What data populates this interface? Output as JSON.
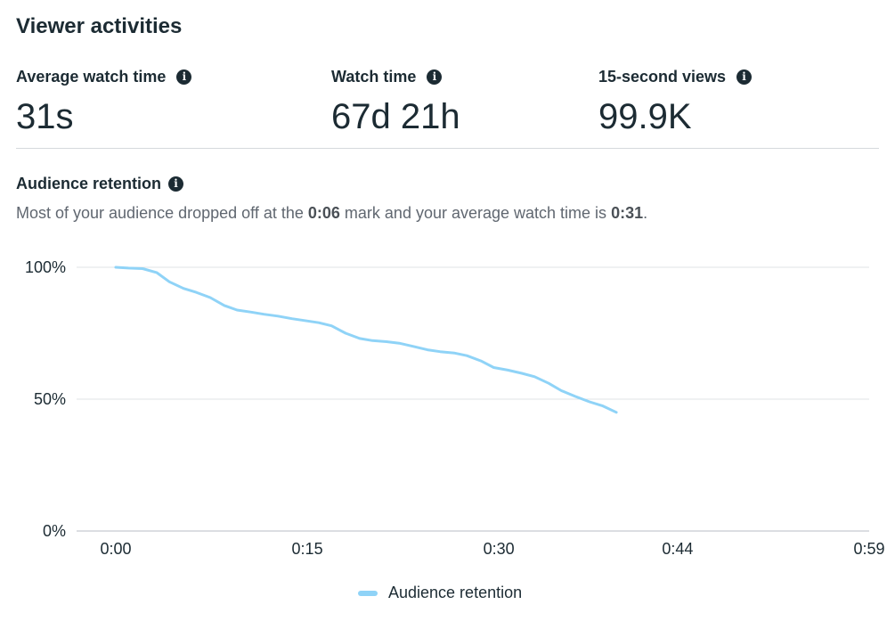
{
  "section": {
    "title": "Viewer activities"
  },
  "metrics": [
    {
      "label": "Average watch time",
      "value": "31s",
      "icon": "info-icon"
    },
    {
      "label": "Watch time",
      "value": "67d 21h",
      "icon": "info-icon"
    },
    {
      "label": "15-second views",
      "value": "99.9K",
      "icon": "info-icon"
    }
  ],
  "retention": {
    "title": "Audience retention",
    "desc_prefix": "Most of your audience dropped off at the ",
    "drop_mark": "0:06",
    "desc_middle": " mark and your average watch time is ",
    "avg_mark": "0:31",
    "desc_suffix": "."
  },
  "legend": {
    "label": "Audience retention",
    "color": "#8fd3f7"
  },
  "chart_data": {
    "type": "line",
    "title": "",
    "xlabel": "",
    "ylabel": "",
    "x_ticks": [
      {
        "t": 0,
        "label": "0:00"
      },
      {
        "t": 15,
        "label": "0:15"
      },
      {
        "t": 30,
        "label": "0:30"
      },
      {
        "t": 44,
        "label": "0:44"
      },
      {
        "t": 59,
        "label": "0:59"
      }
    ],
    "y_ticks": [
      {
        "v": 0,
        "label": "0%"
      },
      {
        "v": 50,
        "label": "50%"
      },
      {
        "v": 100,
        "label": "100%"
      }
    ],
    "xlim": [
      0,
      59
    ],
    "ylim": [
      0,
      100
    ],
    "grid": true,
    "series": [
      {
        "name": "Audience retention",
        "color": "#8fd3f7",
        "points": [
          [
            0,
            100
          ],
          [
            1,
            99.7
          ],
          [
            2.1,
            99.5
          ],
          [
            3.2,
            98
          ],
          [
            4.2,
            94.5
          ],
          [
            5.3,
            92
          ],
          [
            6.3,
            90.5
          ],
          [
            7.4,
            88.5
          ],
          [
            8.5,
            85.5
          ],
          [
            9.5,
            83.8
          ],
          [
            10.6,
            83
          ],
          [
            11.6,
            82.2
          ],
          [
            12.7,
            81.5
          ],
          [
            13.8,
            80.5
          ],
          [
            14.8,
            79.8
          ],
          [
            15.9,
            79
          ],
          [
            16.9,
            77.8
          ],
          [
            18,
            75
          ],
          [
            19.1,
            73
          ],
          [
            20.1,
            72.2
          ],
          [
            21.2,
            71.8
          ],
          [
            22.2,
            71.2
          ],
          [
            23.3,
            70
          ],
          [
            24.4,
            68.7
          ],
          [
            25.4,
            68
          ],
          [
            26.5,
            67.5
          ],
          [
            27.5,
            66.5
          ],
          [
            28.6,
            64.5
          ],
          [
            29.6,
            62
          ],
          [
            30.7,
            61
          ],
          [
            31.8,
            59.8
          ],
          [
            32.8,
            58.5
          ],
          [
            33.9,
            56
          ],
          [
            34.9,
            53.2
          ],
          [
            36,
            51
          ],
          [
            37.1,
            49
          ],
          [
            38.1,
            47.5
          ],
          [
            39.2,
            45
          ]
        ]
      }
    ]
  }
}
